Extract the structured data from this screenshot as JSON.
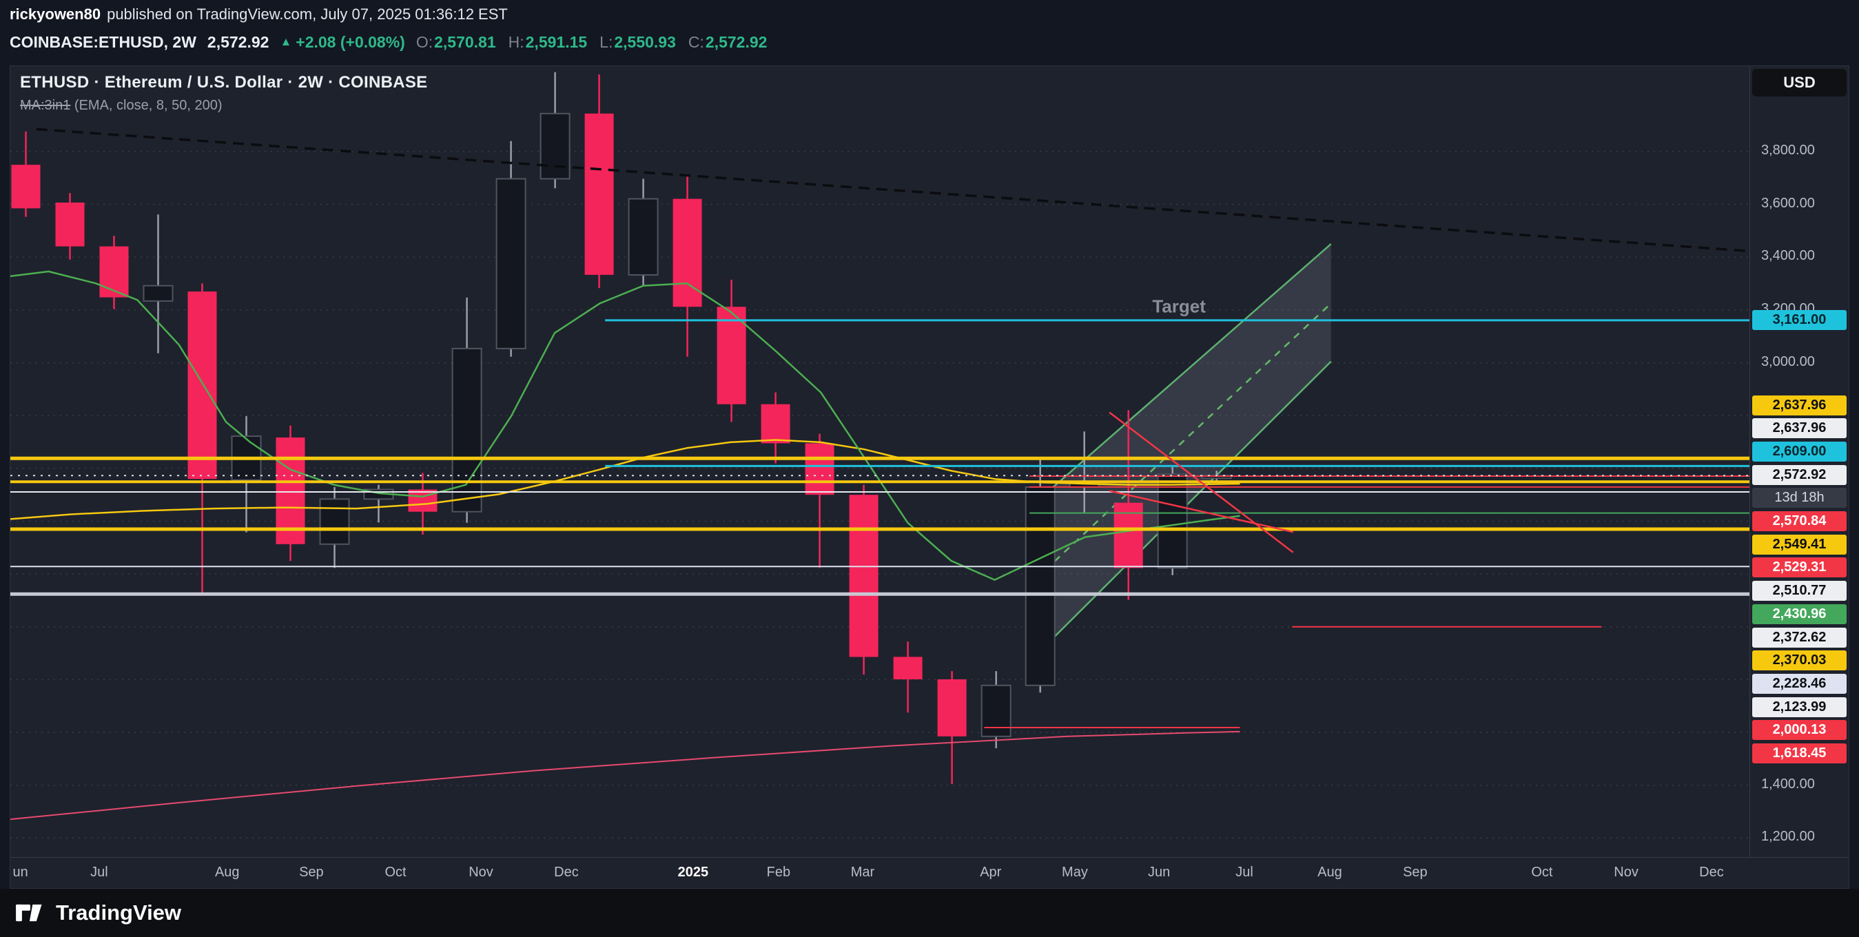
{
  "page": {
    "publish_bar": {
      "username": "rickyowen80",
      "text": "published on TradingView.com, July 07, 2025 01:36:12 EST"
    },
    "symbol_bar": {
      "symbol_interval": "COINBASE:ETHUSD, 2W",
      "last_price": "2,572.92",
      "arrow_up": "▲",
      "change_text": "+2.08 (+0.08%)",
      "ohlc": [
        {
          "label": "O:",
          "value": "2,570.81"
        },
        {
          "label": "H:",
          "value": "2,591.15"
        },
        {
          "label": "L:",
          "value": "2,550.93"
        },
        {
          "label": "C:",
          "value": "2,572.92"
        }
      ]
    },
    "chart_header": {
      "title": "ETHUSD · Ethereum / U.S. Dollar · 2W · COINBASE",
      "indicator_name": "MA:3in1",
      "indicator_params": " (EMA, close, 8, 50, 200)"
    },
    "price_scale": {
      "currency_button": "USD",
      "ticks": [
        {
          "label": "3,800.00",
          "value": 3800
        },
        {
          "label": "3,600.00",
          "value": 3600
        },
        {
          "label": "3,400.00",
          "value": 3400
        },
        {
          "label": "3,200.00",
          "value": 3200
        },
        {
          "label": "3,000.00",
          "value": 3000
        },
        {
          "label": "1,400.00",
          "value": 1400
        },
        {
          "label": "1,200.00",
          "value": 1200
        }
      ],
      "floating_labels": [
        {
          "text": "3,161.00",
          "bg": "cyan",
          "price": 3161
        }
      ],
      "labels": [
        {
          "text": "2,637.96",
          "bg": "yellow"
        },
        {
          "text": "2,637.96",
          "bg": "white"
        },
        {
          "text": "2,609.00",
          "bg": "cyan"
        },
        {
          "text": "2,572.92",
          "bg": "white"
        },
        {
          "text": "13d 18h",
          "bg": "dark"
        },
        {
          "text": "2,570.84",
          "bg": "red"
        },
        {
          "text": "2,549.41",
          "bg": "yellow"
        },
        {
          "text": "2,529.31",
          "bg": "red"
        },
        {
          "text": "2,510.77",
          "bg": "white"
        },
        {
          "text": "2,430.96",
          "bg": "green"
        },
        {
          "text": "2,372.62",
          "bg": "white"
        },
        {
          "text": "2,370.03",
          "bg": "yellow"
        },
        {
          "text": "2,228.46",
          "bg": "pale"
        },
        {
          "text": "2,123.99",
          "bg": "white"
        },
        {
          "text": "2,000.13",
          "bg": "red"
        },
        {
          "text": "1,618.45",
          "bg": "red"
        }
      ]
    },
    "footer": {
      "brand": "TradingView"
    }
  },
  "colors": {
    "up_body": "#14171f",
    "up_border": "#50545f",
    "up_wick": "#9b9eaa",
    "down": "#f4255a",
    "yellow": "#f6c90f",
    "cyan": "#1fc2dd",
    "red": "#f23645",
    "green": "#43a85c",
    "white_line": "#e9ecf1",
    "pale": "#dde3f0",
    "dark_chip": "#363a45",
    "up_text": "#2fb98a"
  },
  "chart_data": {
    "type": "candlestick",
    "title": "ETHUSD · Ethereum / U.S. Dollar · 2W · COINBASE",
    "interval": "2W",
    "price_axis_range": [
      1128,
      4124
    ],
    "grid_values": [
      1200,
      1400,
      1600,
      1800,
      2000,
      2200,
      2400,
      2600,
      2800,
      3000,
      3200,
      3400,
      3600,
      3800
    ],
    "x_start": 0.0089,
    "x_step": 0.02536,
    "months": [
      {
        "label": "un",
        "f": 0.0014,
        "noshift": true
      },
      {
        "label": "Jul",
        "f": 0.0511
      },
      {
        "label": "Aug",
        "f": 0.1247
      },
      {
        "label": "Sep",
        "f": 0.1731
      },
      {
        "label": "Oct",
        "f": 0.2215
      },
      {
        "label": "Nov",
        "f": 0.2706
      },
      {
        "label": "Dec",
        "f": 0.3197
      },
      {
        "label": "2025",
        "f": 0.3926,
        "year": true
      },
      {
        "label": "Feb",
        "f": 0.4417
      },
      {
        "label": "Mar",
        "f": 0.4901
      },
      {
        "label": "Apr",
        "f": 0.5637
      },
      {
        "label": "May",
        "f": 0.6121
      },
      {
        "label": "Jun",
        "f": 0.6605
      },
      {
        "label": "Jul",
        "f": 0.7096
      },
      {
        "label": "Aug",
        "f": 0.7587
      },
      {
        "label": "Sep",
        "f": 0.8078
      },
      {
        "label": "Oct",
        "f": 0.8807
      },
      {
        "label": "Nov",
        "f": 0.9291
      },
      {
        "label": "Dec",
        "f": 0.9782
      }
    ],
    "candles": [
      [
        3750,
        3876,
        3553,
        3585
      ],
      [
        3607,
        3643,
        3391,
        3441
      ],
      [
        3441,
        3481,
        3203,
        3248
      ],
      [
        3234,
        3562,
        3036,
        3292
      ],
      [
        3270,
        3301,
        2124,
        2560
      ],
      [
        2556,
        2798,
        2358,
        2722
      ],
      [
        2717,
        2762,
        2250,
        2313
      ],
      [
        2313,
        2529,
        2223,
        2484
      ],
      [
        2484,
        2538,
        2395,
        2520
      ],
      [
        2520,
        2583,
        2349,
        2436
      ],
      [
        2436,
        3247,
        2394,
        3054
      ],
      [
        3054,
        3840,
        3023,
        3697
      ],
      [
        3697,
        4101,
        3661,
        3944
      ],
      [
        3944,
        4092,
        3283,
        3333
      ],
      [
        3333,
        3697,
        3292,
        3621
      ],
      [
        3621,
        3706,
        3023,
        3212
      ],
      [
        3212,
        3315,
        2776,
        2843
      ],
      [
        2843,
        2888,
        2619,
        2695
      ],
      [
        2695,
        2731,
        2223,
        2500
      ],
      [
        2500,
        2538,
        1819,
        1886
      ],
      [
        1886,
        1944,
        1675,
        1801
      ],
      [
        1801,
        1832,
        1405,
        1585
      ],
      [
        1585,
        1832,
        1540,
        1778
      ],
      [
        1778,
        2641,
        1751,
        2529
      ],
      [
        2529,
        2740,
        2430,
        2551
      ],
      [
        2470,
        2821,
        2102,
        2223
      ],
      [
        2223,
        2605,
        2196,
        2578
      ],
      [
        2570.81,
        2591.15,
        2550.93,
        2572.92
      ]
    ],
    "emas": [
      {
        "name": "EMA 200",
        "color": "#e84a6f",
        "width": 2,
        "points": [
          [
            0,
            1271
          ],
          [
            0.097,
            1334
          ],
          [
            0.199,
            1397
          ],
          [
            0.301,
            1455
          ],
          [
            0.404,
            1504
          ],
          [
            0.506,
            1549
          ],
          [
            0.608,
            1585
          ],
          [
            0.676,
            1598
          ],
          [
            0.707,
            1603
          ]
        ]
      },
      {
        "name": "EMA 50",
        "color": "#f6c90f",
        "width": 2.5,
        "points": [
          [
            0,
            2408
          ],
          [
            0.035,
            2426
          ],
          [
            0.076,
            2439
          ],
          [
            0.117,
            2448
          ],
          [
            0.158,
            2452
          ],
          [
            0.199,
            2448
          ],
          [
            0.24,
            2466
          ],
          [
            0.281,
            2502
          ],
          [
            0.313,
            2551
          ],
          [
            0.339,
            2596
          ],
          [
            0.364,
            2641
          ],
          [
            0.389,
            2677
          ],
          [
            0.414,
            2699
          ],
          [
            0.44,
            2708
          ],
          [
            0.466,
            2699
          ],
          [
            0.491,
            2672
          ],
          [
            0.516,
            2632
          ],
          [
            0.541,
            2591
          ],
          [
            0.566,
            2560
          ],
          [
            0.592,
            2547
          ],
          [
            0.618,
            2542
          ],
          [
            0.643,
            2538
          ],
          [
            0.668,
            2538
          ],
          [
            0.707,
            2542
          ]
        ]
      },
      {
        "name": "EMA 8",
        "color": "#4caf50",
        "width": 2.5,
        "points": [
          [
            0,
            3328
          ],
          [
            0.022,
            3346
          ],
          [
            0.049,
            3301
          ],
          [
            0.073,
            3238
          ],
          [
            0.097,
            3068
          ],
          [
            0.124,
            2776
          ],
          [
            0.138,
            2699
          ],
          [
            0.161,
            2596
          ],
          [
            0.186,
            2538
          ],
          [
            0.212,
            2506
          ],
          [
            0.237,
            2493
          ],
          [
            0.262,
            2538
          ],
          [
            0.288,
            2798
          ],
          [
            0.313,
            3113
          ],
          [
            0.339,
            3225
          ],
          [
            0.364,
            3292
          ],
          [
            0.389,
            3301
          ],
          [
            0.414,
            3194
          ],
          [
            0.44,
            3045
          ],
          [
            0.466,
            2888
          ],
          [
            0.491,
            2641
          ],
          [
            0.516,
            2394
          ],
          [
            0.541,
            2250
          ],
          [
            0.566,
            2178
          ],
          [
            0.592,
            2259
          ],
          [
            0.618,
            2340
          ],
          [
            0.643,
            2363
          ],
          [
            0.668,
            2385
          ],
          [
            0.693,
            2408
          ],
          [
            0.707,
            2420
          ]
        ]
      }
    ],
    "levels": [
      {
        "price": 3161.0,
        "color": "cyan",
        "x1": 0.342,
        "x2": 1,
        "w": 3
      },
      {
        "price": 2637.96,
        "color": "yellow",
        "x1": 0,
        "x2": 1,
        "w": 5
      },
      {
        "price": 2609.0,
        "color": "cyan",
        "x1": 0.342,
        "x2": 1,
        "w": 3
      },
      {
        "price": 2570.84,
        "color": "red",
        "x1": 0.586,
        "x2": 1,
        "w": 2
      },
      {
        "price": 2549.41,
        "color": "yellow",
        "x1": 0,
        "x2": 1,
        "w": 4
      },
      {
        "price": 2529.31,
        "color": "red",
        "x1": 0.586,
        "x2": 1,
        "w": 2
      },
      {
        "price": 2510.77,
        "color": "white_line",
        "x1": 0,
        "x2": 1,
        "w": 2
      },
      {
        "price": 2430.96,
        "color": "green",
        "x1": 0.586,
        "x2": 1,
        "w": 2
      },
      {
        "price": 2372.62,
        "color": "white_line",
        "x1": 0,
        "x2": 1,
        "w": 2
      },
      {
        "price": 2370.03,
        "color": "yellow",
        "x1": 0,
        "x2": 1,
        "w": 5
      },
      {
        "price": 2228.46,
        "color": "pale",
        "x1": 0,
        "x2": 1,
        "w": 2
      },
      {
        "price": 2123.99,
        "color": "#c6c9d4",
        "x1": 0,
        "x2": 1,
        "w": 5
      },
      {
        "price": 2000.13,
        "color": "red",
        "x1": 0.737,
        "x2": 0.915,
        "w": 2
      },
      {
        "price": 1618.45,
        "color": "red",
        "x1": 0.56,
        "x2": 0.707,
        "w": 2
      }
    ],
    "current_price_line": {
      "price": 2572.92
    },
    "trendline": {
      "points": [
        [
          0.015,
          3885
        ],
        [
          1.0,
          3423
        ]
      ],
      "color": "#0b0c0f",
      "dash": "16,10",
      "width": 3.5
    },
    "channel": {
      "label": "Target",
      "label_pos": [
        0.672,
        3211
      ],
      "fill": "rgba(140,146,160,0.22)",
      "upper": [
        [
          0.584,
          2439
        ],
        [
          0.7594,
          3450
        ]
      ],
      "lower": [
        [
          0.584,
          1855
        ],
        [
          0.7594,
          3005
        ]
      ],
      "median": [
        [
          0.584,
          2147
        ],
        [
          0.7594,
          3225
        ]
      ],
      "line_color": "#5cb270",
      "median_color": "#66bb6a"
    },
    "wedge": {
      "color": "#f23645",
      "width": 2.5,
      "lines": [
        [
          [
            0.632,
            2812
          ],
          [
            0.7376,
            2282
          ]
        ],
        [
          [
            0.632,
            2515
          ],
          [
            0.7376,
            2359
          ]
        ]
      ]
    }
  }
}
